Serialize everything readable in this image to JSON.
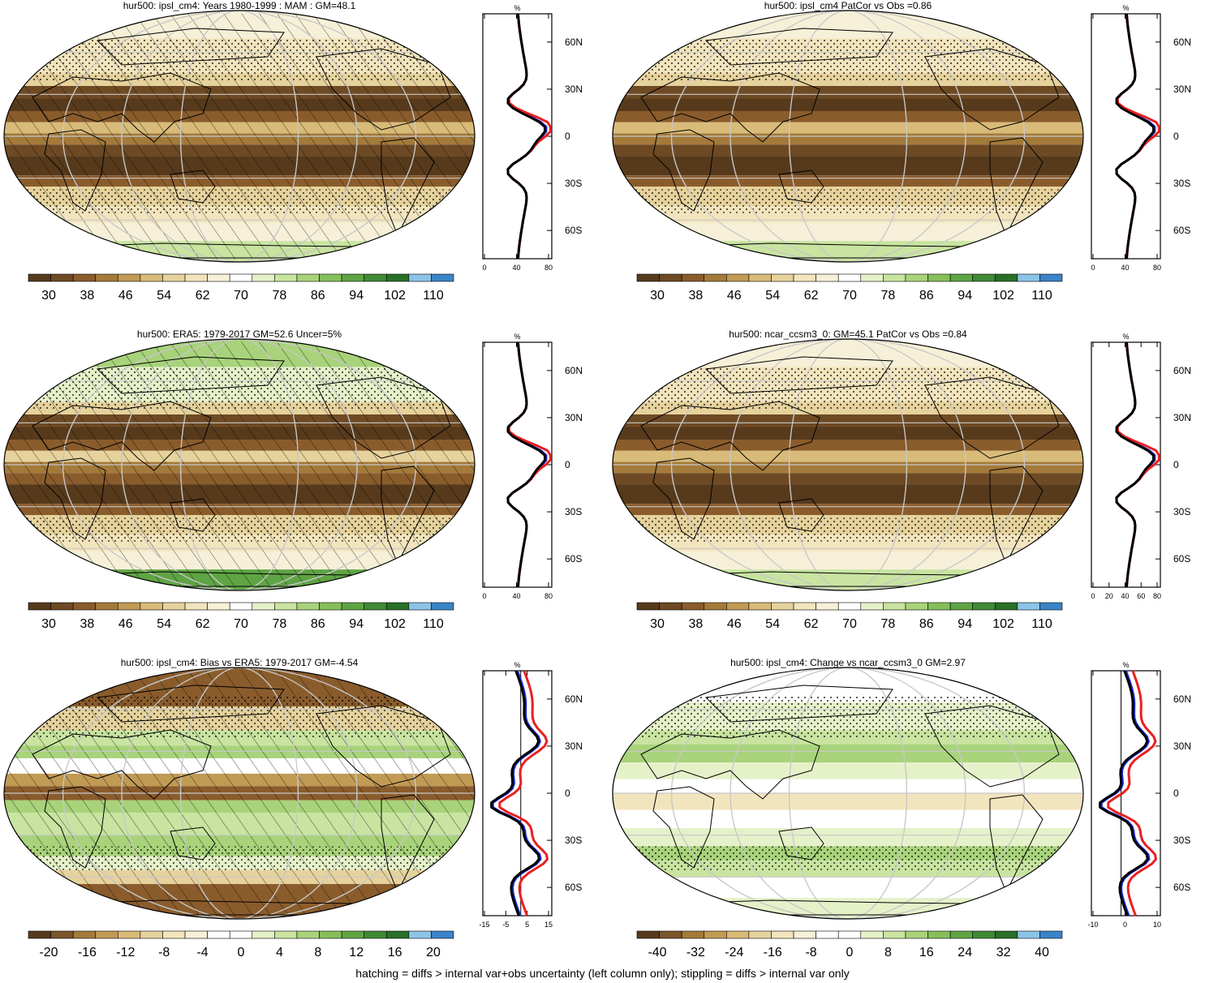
{
  "footnote": "hatching = diffs > internal var+obs uncertainty (left column only); stippling = diffs > internal var only",
  "colors": {
    "fill": [
      "#573a1c",
      "#6e4a24",
      "#8a5c2c",
      "#a47a3a",
      "#c19a54",
      "#d8bb78",
      "#e6d29c",
      "#f2e4bd",
      "#f7f0d8",
      "#ffffff",
      "#e5f1c9",
      "#c8e4a0",
      "#a8d37a",
      "#86bf5a",
      "#5fa444",
      "#3f8a34",
      "#287028",
      "#8cc4e8",
      "#3a84c8"
    ],
    "curve_model": "#e82020",
    "curve_obs": "#1a2ad6",
    "curve_ref": "#000000",
    "grid": "#c8c8c8"
  },
  "profile": {
    "unit": "%",
    "lat_labels": [
      "60N",
      "30N",
      "0",
      "30S",
      "60S"
    ]
  },
  "panels": [
    {
      "id": "p1",
      "title": "hur500: ipsl_cm4: Years 1980-1999 : MAM : GM=48.1",
      "colorbar_labels": [
        "30",
        "38",
        "46",
        "54",
        "62",
        "70",
        "78",
        "86",
        "94",
        "102",
        "110"
      ],
      "profile_ticks": [
        "0",
        "40",
        "80"
      ],
      "kind": "abs",
      "hatched": true
    },
    {
      "id": "p2",
      "title": "hur500: ipsl_cm4 PatCor vs Obs =0.86",
      "colorbar_labels": [
        "30",
        "38",
        "46",
        "54",
        "62",
        "70",
        "78",
        "86",
        "94",
        "102",
        "110"
      ],
      "profile_ticks": [
        "0",
        "40",
        "80"
      ],
      "kind": "abs",
      "hatched": false
    },
    {
      "id": "p3",
      "title": "hur500: ERA5: 1979-2017 GM=52.6 Uncer=5%",
      "colorbar_labels": [
        "30",
        "38",
        "46",
        "54",
        "62",
        "70",
        "78",
        "86",
        "94",
        "102",
        "110"
      ],
      "profile_ticks": [
        "0",
        "40",
        "80"
      ],
      "kind": "abs",
      "hatched": true
    },
    {
      "id": "p4",
      "title": "hur500: ncar_ccsm3_0: GM=45.1 PatCor vs Obs =0.84",
      "colorbar_labels": [
        "30",
        "38",
        "46",
        "54",
        "62",
        "70",
        "78",
        "86",
        "94",
        "102",
        "110"
      ],
      "profile_ticks": [
        "0",
        "20",
        "40",
        "60",
        "80"
      ],
      "kind": "abs",
      "hatched": false
    },
    {
      "id": "p5",
      "title": "hur500: ipsl_cm4: Bias vs ERA5: 1979-2017 GM=-4.54",
      "colorbar_labels": [
        "-20",
        "-16",
        "-12",
        "-8",
        "-4",
        "0",
        "4",
        "8",
        "12",
        "16",
        "20"
      ],
      "profile_ticks": [
        "-15",
        "-5",
        "5",
        "15"
      ],
      "kind": "diff",
      "hatched": true
    },
    {
      "id": "p6",
      "title": "hur500: ipsl_cm4: Change vs ncar_ccsm3_0 GM=2.97",
      "colorbar_labels": [
        "-40",
        "-32",
        "-24",
        "-16",
        "-8",
        "0",
        "8",
        "16",
        "24",
        "32",
        "40"
      ],
      "profile_ticks": [
        "-10",
        "0",
        "10"
      ],
      "kind": "diff",
      "hatched": false
    }
  ]
}
